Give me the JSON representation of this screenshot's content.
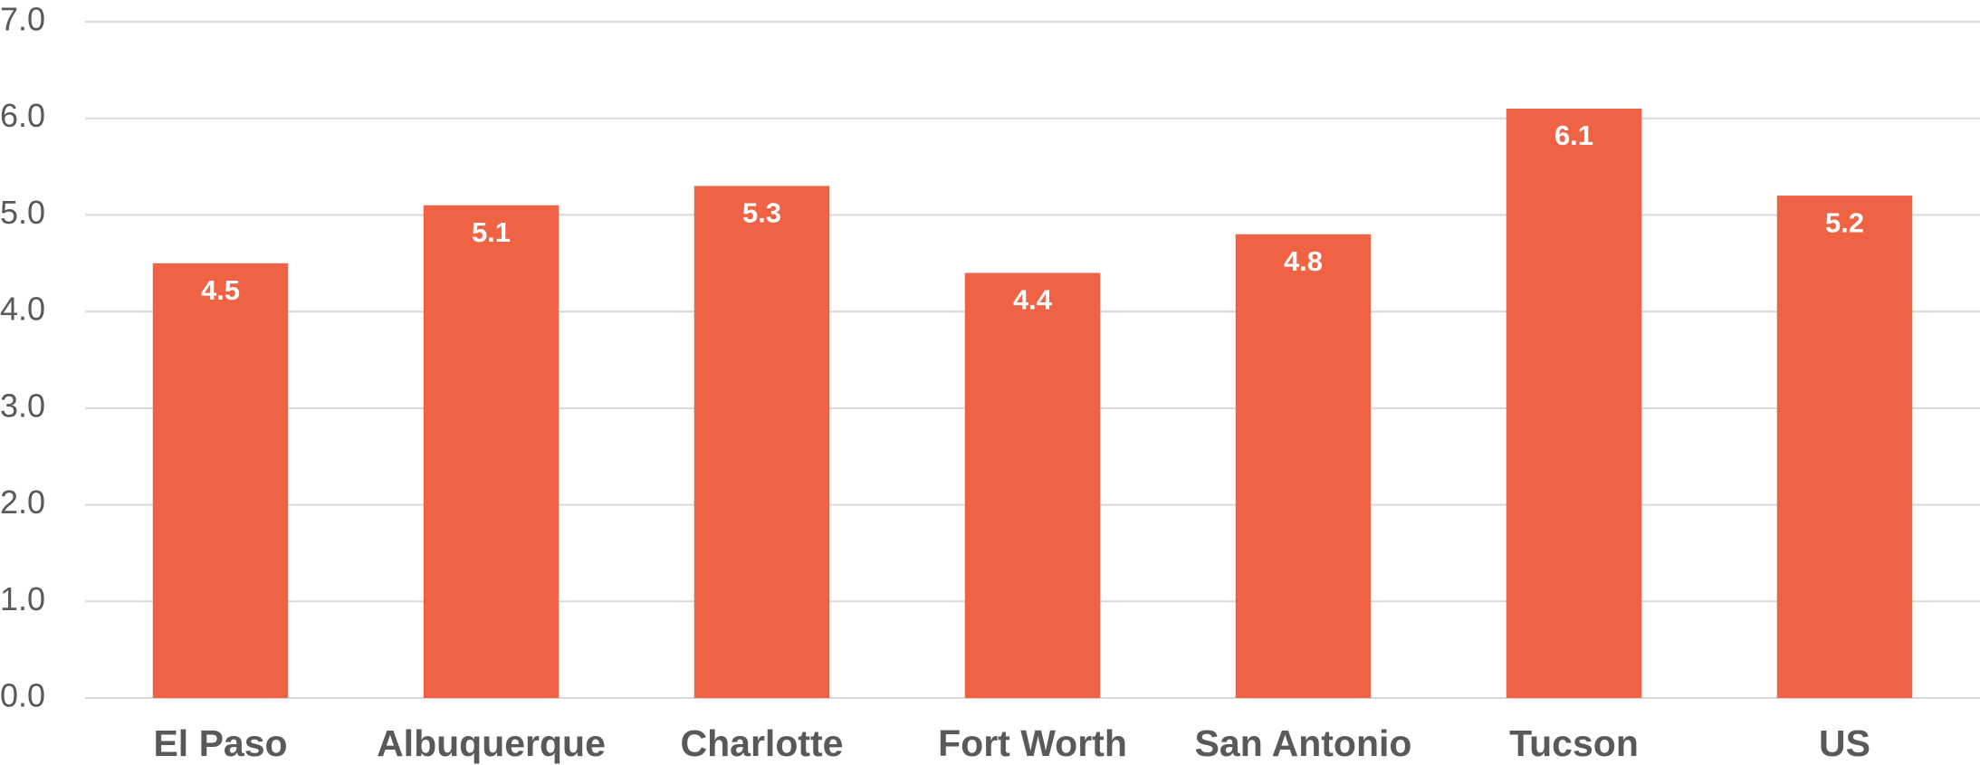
{
  "chart_data": {
    "type": "bar",
    "categories": [
      "El Paso",
      "Albuquerque",
      "Charlotte",
      "Fort Worth",
      "San Antonio",
      "Tucson",
      "US"
    ],
    "values": [
      4.5,
      5.1,
      5.3,
      4.4,
      4.8,
      6.1,
      5.2
    ],
    "color": "#f06244",
    "ylim": [
      0,
      7
    ],
    "yticks": [
      {
        "value": 0,
        "label": "0.0"
      },
      {
        "value": 1,
        "label": "1.0"
      },
      {
        "value": 2,
        "label": "2.0"
      },
      {
        "value": 3,
        "label": "3.0"
      },
      {
        "value": 4,
        "label": "4.0"
      },
      {
        "value": 5,
        "label": "5.0"
      },
      {
        "value": 6,
        "label": "6.0"
      },
      {
        "value": 7,
        "label": "7.0"
      }
    ],
    "grid": true
  }
}
